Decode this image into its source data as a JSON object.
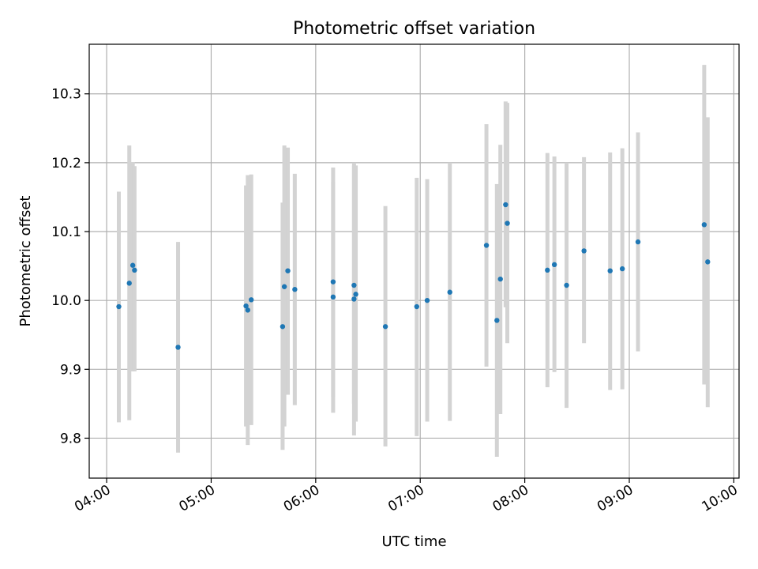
{
  "chart_data": {
    "type": "scatter",
    "title": "Photometric offset variation",
    "xlabel": "UTC time",
    "ylabel": "Photometric offset",
    "xlim": [
      "03:50",
      "10:03"
    ],
    "ylim": [
      9.742,
      10.372
    ],
    "x_ticks": [
      "04:00",
      "05:00",
      "06:00",
      "07:00",
      "08:00",
      "09:00",
      "10:00"
    ],
    "y_ticks": [
      9.8,
      9.9,
      10.0,
      10.1,
      10.2,
      10.3
    ],
    "y_tick_labels": [
      "9.8",
      "9.9",
      "10.0",
      "10.1",
      "10.2",
      "10.3"
    ],
    "grid": true,
    "point_color": "#1f77b4",
    "errorbar_color": "#d3d3d3",
    "points": [
      {
        "t": "04:07",
        "y": 9.991,
        "lo": 9.823,
        "hi": 10.158
      },
      {
        "t": "04:13",
        "y": 10.025,
        "lo": 9.826,
        "hi": 10.225
      },
      {
        "t": "04:15",
        "y": 10.051,
        "lo": 9.897,
        "hi": 10.201
      },
      {
        "t": "04:16",
        "y": 10.044,
        "lo": 9.897,
        "hi": 10.195
      },
      {
        "t": "04:41",
        "y": 9.932,
        "lo": 9.779,
        "hi": 10.085
      },
      {
        "t": "05:20",
        "y": 9.992,
        "lo": 9.817,
        "hi": 10.167
      },
      {
        "t": "05:21",
        "y": 9.986,
        "lo": 9.79,
        "hi": 10.182
      },
      {
        "t": "05:23",
        "y": 10.001,
        "lo": 9.819,
        "hi": 10.183
      },
      {
        "t": "05:41",
        "y": 9.962,
        "lo": 9.783,
        "hi": 10.142
      },
      {
        "t": "05:42",
        "y": 10.02,
        "lo": 9.817,
        "hi": 10.225
      },
      {
        "t": "05:44",
        "y": 10.043,
        "lo": 9.863,
        "hi": 10.222
      },
      {
        "t": "05:48",
        "y": 10.016,
        "lo": 9.848,
        "hi": 10.184
      },
      {
        "t": "06:10",
        "y": 10.005,
        "lo": 9.837,
        "hi": 10.172
      },
      {
        "t": "06:10",
        "y": 10.027,
        "lo": 9.86,
        "hi": 10.193
      },
      {
        "t": "06:22",
        "y": 10.002,
        "lo": 9.804,
        "hi": 10.2
      },
      {
        "t": "06:23",
        "y": 10.009,
        "lo": 9.824,
        "hi": 10.196
      },
      {
        "t": "06:22",
        "y": 10.022,
        "lo": 9.85,
        "hi": 10.196
      },
      {
        "t": "06:40",
        "y": 9.962,
        "lo": 9.788,
        "hi": 10.137
      },
      {
        "t": "06:58",
        "y": 9.991,
        "lo": 9.803,
        "hi": 10.178
      },
      {
        "t": "07:04",
        "y": 10.0,
        "lo": 9.824,
        "hi": 10.176
      },
      {
        "t": "07:17",
        "y": 10.012,
        "lo": 9.825,
        "hi": 10.2
      },
      {
        "t": "07:38",
        "y": 10.08,
        "lo": 9.904,
        "hi": 10.256
      },
      {
        "t": "07:44",
        "y": 9.971,
        "lo": 9.773,
        "hi": 10.169
      },
      {
        "t": "07:46",
        "y": 10.031,
        "lo": 9.835,
        "hi": 10.226
      },
      {
        "t": "07:49",
        "y": 10.139,
        "lo": 9.99,
        "hi": 10.289
      },
      {
        "t": "07:50",
        "y": 10.112,
        "lo": 9.938,
        "hi": 10.287
      },
      {
        "t": "08:13",
        "y": 10.044,
        "lo": 9.874,
        "hi": 10.214
      },
      {
        "t": "08:17",
        "y": 10.052,
        "lo": 9.896,
        "hi": 10.209
      },
      {
        "t": "08:24",
        "y": 10.022,
        "lo": 9.844,
        "hi": 10.2
      },
      {
        "t": "08:34",
        "y": 10.072,
        "lo": 9.938,
        "hi": 10.208
      },
      {
        "t": "08:49",
        "y": 10.043,
        "lo": 9.87,
        "hi": 10.215
      },
      {
        "t": "08:56",
        "y": 10.046,
        "lo": 9.871,
        "hi": 10.221
      },
      {
        "t": "09:05",
        "y": 10.085,
        "lo": 9.926,
        "hi": 10.244
      },
      {
        "t": "09:43",
        "y": 10.11,
        "lo": 9.878,
        "hi": 10.342
      },
      {
        "t": "09:45",
        "y": 10.056,
        "lo": 9.845,
        "hi": 10.266
      }
    ]
  }
}
